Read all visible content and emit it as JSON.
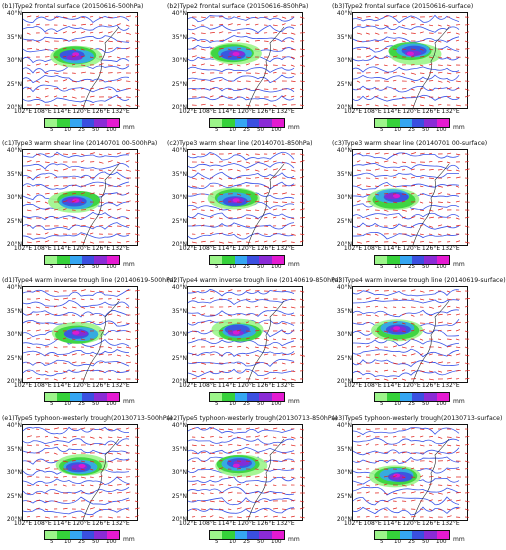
{
  "panels": [
    {
      "id": "b1",
      "title": "(b1)Type2 frontal surface (20150616-500hPa)"
    },
    {
      "id": "b2",
      "title": "(b2)Type2 frontal surface (20150616-850hPa)"
    },
    {
      "id": "b3",
      "title": "(b3)Type2 frontal surface (20150616-surface)"
    },
    {
      "id": "c1",
      "title": "(c1)Type3 warm shear line (20140701 00-500hPa)"
    },
    {
      "id": "c2",
      "title": "(c2)Type3 warm shear line (20140701-850hPa)"
    },
    {
      "id": "c3",
      "title": "(c3)Type3 warm shear line (20140701 00-surface)"
    },
    {
      "id": "d1",
      "title": "(d1)Type4 warm inverse trough line (20140619-500hPa)"
    },
    {
      "id": "d2",
      "title": "(d2)Type4 warm inverse trough line (20140619-850hPa)"
    },
    {
      "id": "d3",
      "title": "(d3)Type4 warm inverse trough line (20140619-surface)"
    },
    {
      "id": "e1",
      "title": "(e1)Type5 typhoon-westerly trough(20130713-500hPa)"
    },
    {
      "id": "e2",
      "title": "(e2)Type5 typhoon-westerly trough(20130713-850hPa)"
    },
    {
      "id": "e3",
      "title": "(e3)Type5 typhoon-westerly trough(20130713-surface)"
    }
  ],
  "lat_labels": [
    "40°N",
    "35°N",
    "30°N",
    "25°N",
    "20°N"
  ],
  "lon_labels": [
    "102°E",
    "108°E",
    "114°E",
    "120°E",
    "126°E",
    "132°E"
  ],
  "colorbar": {
    "ticks": [
      "5",
      "10",
      "25",
      "50",
      "100"
    ],
    "unit": "mm",
    "colors": [
      "#9cf58a",
      "#35d13a",
      "#35a6f2",
      "#3a4fe0",
      "#8a2bd6",
      "#e41ad1"
    ]
  },
  "colors": {
    "streamline": "#3a53e8",
    "vector": "#e0201a",
    "coast": "#222222"
  }
}
